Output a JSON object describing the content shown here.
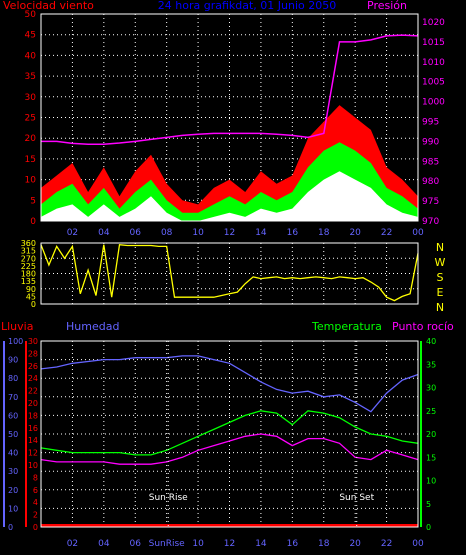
{
  "colors": {
    "background": "#000000",
    "frame": "#ffffff",
    "grid": "#ffffff",
    "wind_speed": "#ff0000",
    "wind_avg": "#00ff00",
    "wind_min": "#ffffff",
    "pressure": "#ff00ff",
    "wind_dir": "#ffff00",
    "rain": "#ff0000",
    "humidity": "#6464ff",
    "temperature": "#00ff00",
    "dewpoint": "#ff00ff",
    "title": "#0000ff",
    "dir_labels": "#ffff00",
    "sun_marker": "#ffffff"
  },
  "chart_data": [
    {
      "type": "area",
      "title": "24 hora grafikdat, 01 Junio 2050",
      "left_label": "Velocidad viento",
      "right_label": "Presión",
      "left_ticks": [
        "0",
        "5",
        "10",
        "15",
        "20",
        "25",
        "30",
        "35",
        "40",
        "45",
        "50"
      ],
      "right_ticks": [
        "970",
        "975",
        "980",
        "985",
        "990",
        "995",
        "1000",
        "1005",
        "1010",
        "1015",
        "1020"
      ],
      "ylim_left": [
        0,
        50
      ],
      "ylim_right": [
        970,
        1022
      ],
      "x_ticks": [
        "02",
        "04",
        "06",
        "08",
        "10",
        "12",
        "14",
        "16",
        "18",
        "20",
        "22",
        "00"
      ],
      "x_hours": [
        0,
        1,
        2,
        3,
        4,
        5,
        6,
        7,
        8,
        9,
        10,
        11,
        12,
        13,
        14,
        15,
        16,
        17,
        18,
        19,
        20,
        21,
        22,
        23,
        24
      ],
      "series": [
        {
          "key": "gust",
          "values": [
            8,
            11,
            14,
            7,
            13,
            6,
            12,
            16,
            9,
            5,
            4,
            8,
            10,
            7,
            12,
            9,
            11,
            20,
            24,
            28,
            25,
            22,
            13,
            10,
            6
          ]
        },
        {
          "key": "avg",
          "values": [
            4,
            7,
            9,
            4,
            8,
            3,
            7,
            10,
            5,
            2,
            2,
            4,
            6,
            4,
            7,
            5,
            7,
            13,
            17,
            19,
            17,
            14,
            8,
            6,
            3
          ]
        },
        {
          "key": "min",
          "values": [
            1,
            3,
            4,
            1,
            4,
            1,
            3,
            6,
            2,
            0,
            0,
            1,
            2,
            1,
            3,
            2,
            3,
            7,
            10,
            12,
            10,
            8,
            4,
            2,
            1
          ]
        },
        {
          "key": "pressure",
          "values": [
            990,
            990,
            989.5,
            989.3,
            989.3,
            989.6,
            990,
            990.5,
            991,
            991.5,
            991.8,
            992,
            992,
            992,
            992,
            991.8,
            991.5,
            991,
            992,
            1015,
            1015,
            1015.5,
            1016.5,
            1016.7,
            1016.5
          ]
        }
      ]
    },
    {
      "type": "line",
      "left_ticks": [
        "0",
        "45",
        "90",
        "135",
        "180",
        "225",
        "270",
        "315",
        "360"
      ],
      "ylim": [
        0,
        360
      ],
      "dir_labels": [
        "N",
        "W",
        "S",
        "E",
        "N"
      ],
      "x_hours": [
        0,
        0.5,
        1,
        1.5,
        2,
        2.5,
        3,
        3.5,
        4,
        4.5,
        5,
        5.5,
        6,
        6.5,
        7,
        7.5,
        8,
        8.5,
        9,
        9.5,
        10,
        10.5,
        11,
        11.5,
        12,
        12.5,
        13,
        13.5,
        14,
        14.5,
        15,
        15.5,
        16,
        16.5,
        17,
        17.5,
        18,
        18.5,
        19,
        19.5,
        20,
        20.5,
        21,
        21.5,
        22,
        22.5,
        23,
        23.5,
        24
      ],
      "values": [
        350,
        230,
        340,
        270,
        340,
        60,
        200,
        50,
        350,
        40,
        350,
        345,
        345,
        345,
        345,
        340,
        340,
        40,
        40,
        40,
        40,
        40,
        40,
        50,
        60,
        70,
        120,
        160,
        150,
        155,
        160,
        150,
        155,
        150,
        155,
        160,
        155,
        150,
        160,
        155,
        150,
        155,
        130,
        100,
        40,
        20,
        45,
        60,
        300
      ]
    },
    {
      "type": "line",
      "left_label_1": "Lluvia",
      "left_label_2": "Humedad",
      "right_label_1": "Temperatura",
      "right_label_2": "Punto rocío",
      "humidity_ticks": [
        "0",
        "10",
        "20",
        "30",
        "40",
        "50",
        "60",
        "70",
        "80",
        "90",
        "100"
      ],
      "rain_ticks": [
        "0",
        "2",
        "4",
        "6",
        "8",
        "10",
        "12",
        "14",
        "16",
        "18",
        "20",
        "22",
        "24",
        "26",
        "28",
        "30"
      ],
      "temp_ticks": [
        "0",
        "5",
        "10",
        "15",
        "20",
        "25",
        "30",
        "35",
        "40"
      ],
      "x_ticks": [
        "02",
        "04",
        "06",
        "SunRise",
        "10",
        "12",
        "14",
        "16",
        "18",
        "20",
        "22",
        "00"
      ],
      "sunrise_label": "Sun Rise",
      "sunset_label": "Sun Set",
      "sunrise_hour": 8.1,
      "sunset_hour": 20.1,
      "x_hours": [
        0,
        1,
        2,
        3,
        4,
        5,
        6,
        7,
        8,
        9,
        10,
        11,
        12,
        13,
        14,
        15,
        16,
        17,
        18,
        19,
        20,
        21,
        22,
        23,
        24
      ],
      "series": [
        {
          "name": "Humedad",
          "values": [
            85,
            86,
            88,
            89,
            90,
            90,
            91,
            91,
            91,
            92,
            92,
            90,
            88,
            83,
            78,
            74,
            72,
            73,
            70,
            71,
            67,
            62,
            72,
            79,
            82
          ]
        },
        {
          "name": "Temperatura",
          "values": [
            17,
            16.5,
            16,
            16,
            16,
            16,
            15.5,
            15.5,
            16.5,
            18,
            19.5,
            21,
            22.5,
            24,
            25,
            24.5,
            22,
            25,
            24.5,
            23.5,
            21.5,
            20,
            19.5,
            18.5,
            18
          ]
        },
        {
          "name": "Punto rocío",
          "values": [
            14.5,
            14,
            14,
            14,
            14,
            13.5,
            13.5,
            13.5,
            14,
            15,
            16.5,
            17.5,
            18.5,
            19.5,
            20,
            19.5,
            17.5,
            19,
            19,
            18,
            15,
            14.5,
            16.5,
            15.5,
            14.5
          ]
        },
        {
          "name": "Lluvia",
          "values": [
            0,
            0,
            0,
            0,
            0,
            0,
            0,
            0,
            0,
            0,
            0,
            0,
            0,
            0,
            0,
            0,
            0,
            0,
            0,
            0,
            0,
            0,
            0,
            0,
            0
          ]
        }
      ]
    }
  ]
}
